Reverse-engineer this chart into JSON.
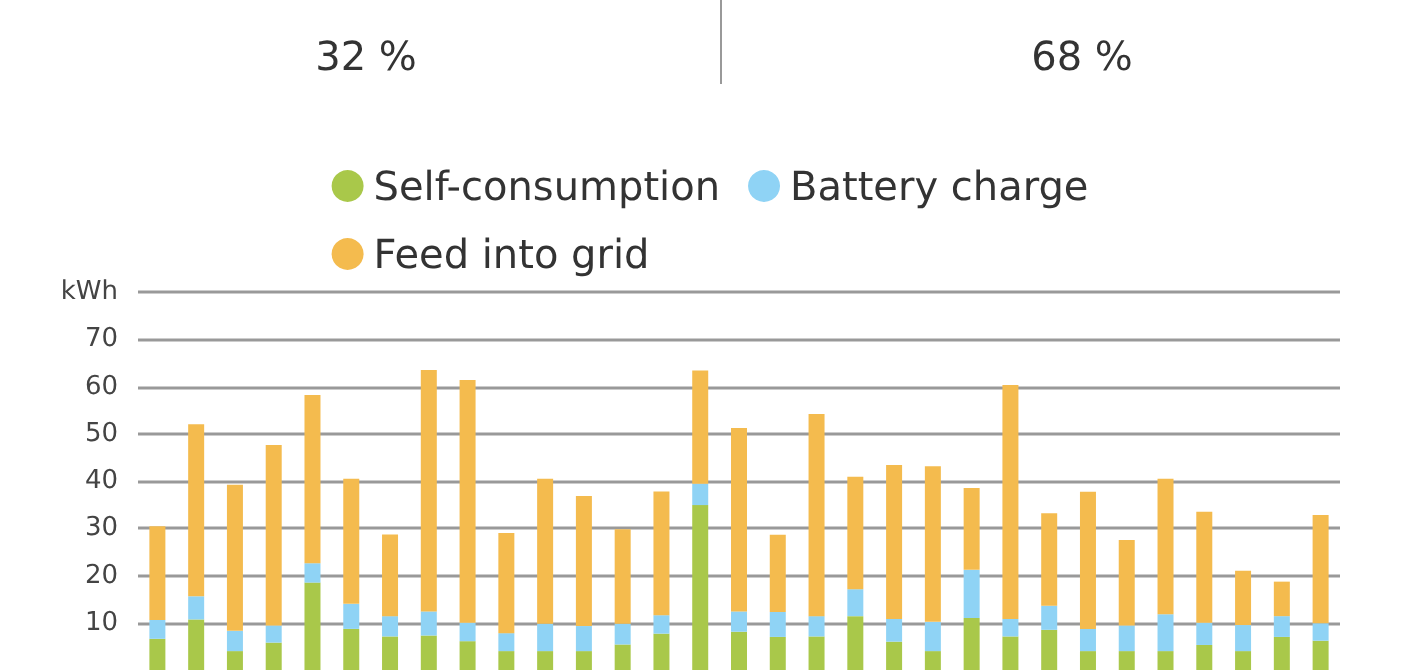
{
  "chart_data": {
    "type": "bar",
    "stacked": true,
    "annotations": [
      "32 %",
      "68 %"
    ],
    "categories": [
      null,
      null,
      null,
      null,
      null,
      null,
      null,
      null,
      null,
      null,
      null,
      null,
      null,
      null,
      null,
      null,
      null,
      null,
      null,
      null,
      null,
      null,
      null,
      null,
      null,
      null,
      null,
      null,
      null,
      null,
      null
    ],
    "series": [
      {
        "name": "Self-consumption",
        "color": "#a9c84a",
        "values": [
          6.6,
          10.7,
          4,
          5.8,
          18.5,
          8.7,
          7.1,
          7.3,
          6.1,
          4,
          4,
          4,
          5.4,
          7.7,
          34.9,
          8.1,
          7,
          7.1,
          11.4,
          6,
          4,
          11,
          7.1,
          8.5,
          4,
          4,
          4,
          5.3,
          4,
          7,
          6.2
        ]
      },
      {
        "name": "Battery charge",
        "color": "#8fd3f5",
        "values": [
          4,
          4.9,
          4.3,
          3.6,
          4.1,
          5.3,
          4.3,
          5.1,
          3.9,
          3.8,
          5.8,
          5.3,
          4.4,
          3.9,
          4.5,
          4.3,
          5.3,
          4.3,
          5.7,
          4.8,
          6.2,
          10.2,
          3.7,
          5.1,
          4.7,
          5.4,
          7.8,
          4.7,
          5.5,
          4.4,
          3.7
        ]
      },
      {
        "name": "Feed into grid",
        "color": "#f4bb4e",
        "values": [
          19.8,
          36.4,
          30.9,
          38.2,
          35.6,
          26.5,
          17.3,
          51.1,
          51.4,
          21.2,
          30.7,
          27.5,
          20,
          26.2,
          24,
          38.8,
          16.3,
          42.8,
          23.8,
          32.6,
          32.9,
          17.3,
          49.5,
          19.6,
          29,
          18.1,
          28.7,
          23.5,
          11.5,
          7.3,
          22.9
        ]
      }
    ],
    "ylim": [
      0,
      80
    ],
    "yticks": [
      10,
      20,
      30,
      40,
      50,
      60,
      70,
      {
        "value": 80,
        "label": "kWh"
      }
    ],
    "grid": "y",
    "legend": "top",
    "tick_labels": "y"
  }
}
